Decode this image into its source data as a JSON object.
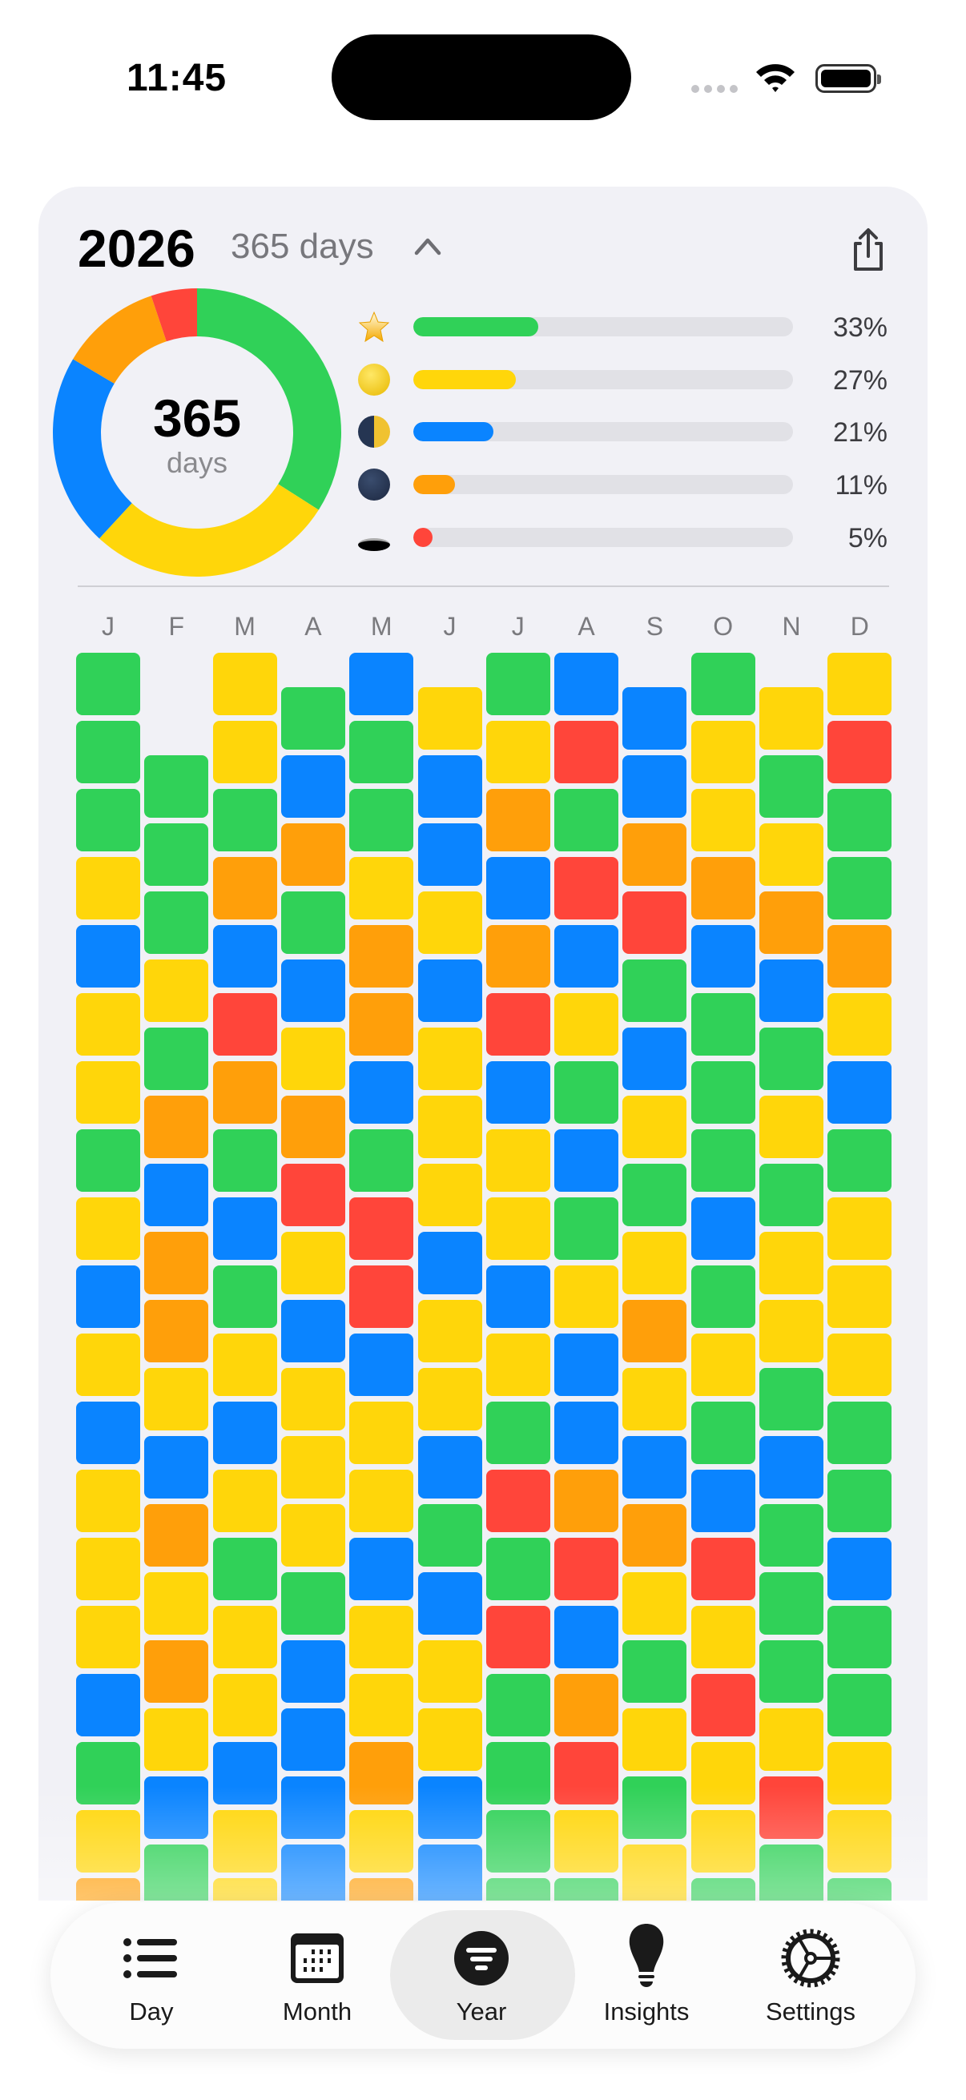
{
  "status_bar": {
    "time": "11:45",
    "signal_icon": "signal-dots-icon",
    "wifi_icon": "wifi-icon",
    "battery_icon": "battery-icon"
  },
  "header": {
    "year": "2026",
    "days_count": "365 days",
    "collapse_icon": "chevron-up-icon",
    "share_icon": "share-icon"
  },
  "summary": {
    "total": "365",
    "total_label": "days",
    "moods": [
      {
        "icon": "star-emoji",
        "color": "#30d158",
        "percent": 33,
        "label": "33%"
      },
      {
        "icon": "full-moon-emoji",
        "color": "#ffd60a",
        "percent": 27,
        "label": "27%"
      },
      {
        "icon": "half-moon-emoji",
        "color": "#0a84ff",
        "percent": 21,
        "label": "21%"
      },
      {
        "icon": "new-moon-emoji",
        "color": "#ff9f0a",
        "percent": 11,
        "label": "11%"
      },
      {
        "icon": "hole-emoji",
        "color": "#ff453a",
        "percent": 5,
        "label": "5%"
      }
    ]
  },
  "calendar": {
    "color_key": {
      "G": "#30d158",
      "Y": "#ffd60a",
      "B": "#0a84ff",
      "O": "#ff9f0a",
      "R": "#ff453a"
    },
    "months": [
      {
        "label": "J",
        "days": "GGGYBYYGYBYBYYYBGYO"
      },
      {
        "label": "F",
        "days": "GGGYGOBOOYBOYOYBG"
      },
      {
        "label": "M",
        "days": "YYGOBROGBGYBYGYYBYY"
      },
      {
        "label": "A",
        "days": "GBOGBYORYBYYYGBBBB"
      },
      {
        "label": "M",
        "days": "BGGYOOBGRRBYYBYYOYO"
      },
      {
        "label": "J",
        "days": "YBBYBYYYBYYBGBYYBB"
      },
      {
        "label": "J",
        "days": "GYOBORBYYBYGRGRGGGG"
      },
      {
        "label": "A",
        "days": "BRGRBYGBGYBBORBORYG"
      },
      {
        "label": "S",
        "days": "BBORGBYGYOYBOYGYGY"
      },
      {
        "label": "O",
        "days": "GYYOBGGGBGYGBRYRYYG"
      },
      {
        "label": "N",
        "days": "YGYOBGYGYYGBGGGYRG"
      },
      {
        "label": "D",
        "days": "YRGGOYBGYYYGGBGGYYG"
      }
    ]
  },
  "tabs": [
    {
      "label": "Day",
      "icon": "list-icon"
    },
    {
      "label": "Month",
      "icon": "calendar-icon"
    },
    {
      "label": "Year",
      "icon": "filter-circle-icon",
      "selected": true
    },
    {
      "label": "Insights",
      "icon": "lightbulb-icon"
    },
    {
      "label": "Settings",
      "icon": "gear-icon"
    }
  ]
}
